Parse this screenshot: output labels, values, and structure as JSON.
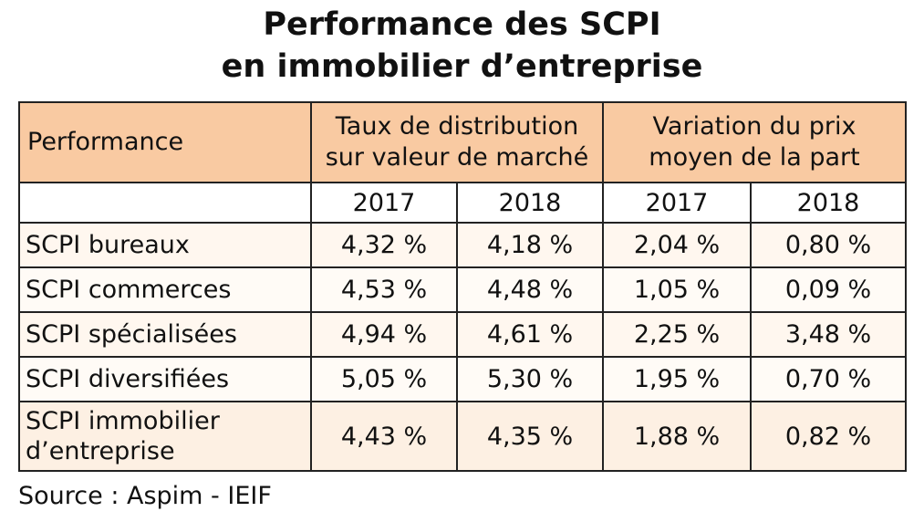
{
  "title": {
    "line1": "Performance des SCPI",
    "line2": "en immobilier d’entreprise"
  },
  "table": {
    "header": {
      "first": "Performance",
      "group1_line1": "Taux de distribution",
      "group1_line2": "sur valeur de marché",
      "group2_line1": "Variation du prix",
      "group2_line2": "moyen de la part"
    },
    "years": [
      "2017",
      "2018",
      "2017",
      "2018"
    ],
    "rows": [
      {
        "label": "SCPI bureaux",
        "values": [
          "4,32 %",
          "4,18 %",
          "2,04 %",
          "0,80 %"
        ]
      },
      {
        "label": "SCPI commerces",
        "values": [
          "4,53 %",
          "4,48 %",
          "1,05 %",
          "0,09 %"
        ]
      },
      {
        "label": "SCPI spécialisées",
        "values": [
          "4,94 %",
          "4,61 %",
          "2,25 %",
          "3,48 %"
        ]
      },
      {
        "label": "SCPI diversifiées",
        "values": [
          "5,05 %",
          "5,30 %",
          "1,95 %",
          "0,70 %"
        ]
      },
      {
        "label_line1": "SCPI immobilier",
        "label_line2": "d’entreprise",
        "values": [
          "4,43 %",
          "4,35 %",
          "1,88 %",
          "0,82 %"
        ]
      }
    ]
  },
  "source": "Source : Aspim - IEIF",
  "colors": {
    "header_bg": "#f9caa2",
    "row_bg": "#fff7ef",
    "border": "#222222"
  }
}
